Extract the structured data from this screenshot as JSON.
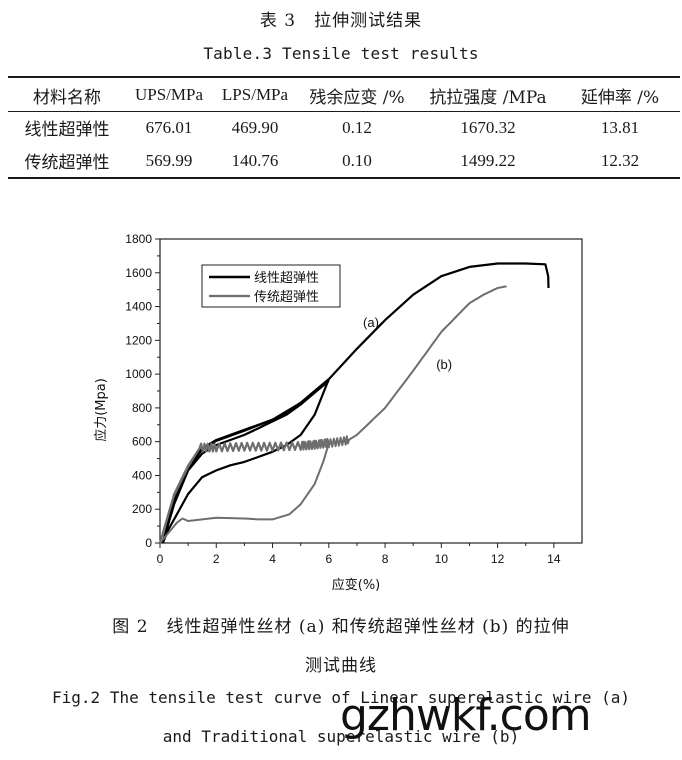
{
  "table": {
    "title_cn": "表 3　拉伸测试结果",
    "title_en": "Table.3  Tensile test results",
    "headers": [
      "材料名称",
      "UPS/MPa",
      "LPS/MPa",
      "残余应变 /%",
      "抗拉强度 /MPa",
      "延伸率 /%"
    ],
    "rows": [
      [
        "线性超弹性",
        "676.01",
        "469.90",
        "0.12",
        "1670.32",
        "13.81"
      ],
      [
        "传统超弹性",
        "569.99",
        "140.76",
        "0.10",
        "1499.22",
        "12.32"
      ]
    ]
  },
  "figure": {
    "caption_cn_line1": "图 2　线性超弹性丝材 (a) 和传统超弹性丝材 (b) 的拉伸",
    "caption_cn_line2": "测试曲线",
    "caption_en_line1": "Fig.2  The tensile test curve of Linear superelastic wire (a)",
    "caption_en_line2": "and Traditional superelastic wire (b)"
  },
  "watermark": "gzhwkf.com",
  "chart_data": {
    "type": "line",
    "title": "",
    "xlabel": "应变(%)",
    "ylabel": "应力(Mpa)",
    "xlim": [
      0,
      15
    ],
    "ylim": [
      0,
      1800
    ],
    "xticks": [
      "0",
      "2",
      "4",
      "6",
      "8",
      "10",
      "12",
      "14"
    ],
    "yticks": [
      "0",
      "200",
      "400",
      "600",
      "800",
      "1000",
      "1200",
      "1400",
      "1600",
      "1800"
    ],
    "grid": false,
    "legend_position": "upper-left",
    "annotations": [
      {
        "text": "(a)",
        "x": 7.5,
        "y": 1280
      },
      {
        "text": "(b)",
        "x": 10.1,
        "y": 1030
      }
    ],
    "colors": {
      "linear": "#000000",
      "traditional": "#6e6e6e"
    },
    "series": [
      {
        "name": "线性超弹性",
        "label": "(a)",
        "color": "#000000",
        "segments": [
          {
            "part": "load-unload cycle 1 (loading)",
            "x": [
              0.1,
              0.5,
              1.0,
              1.5,
              2.0,
              2.5,
              3.0,
              3.5,
              4.0,
              4.5,
              5.0,
              5.5,
              6.0
            ],
            "y": [
              0,
              250,
              450,
              560,
              610,
              640,
              670,
              700,
              730,
              770,
              830,
              900,
              970
            ]
          },
          {
            "part": "load-unload cycle 1 (unloading)",
            "x": [
              6.0,
              5.5,
              5.0,
              4.5,
              4.0,
              3.5,
              3.0,
              2.5,
              2.0,
              1.5,
              1.0,
              0.6,
              0.3,
              0.1
            ],
            "y": [
              970,
              760,
              640,
              580,
              540,
              510,
              480,
              460,
              430,
              390,
              290,
              170,
              80,
              0
            ]
          },
          {
            "part": "load-unload cycle 2 (loading)",
            "x": [
              0.1,
              0.5,
              1.0,
              1.5,
              2.0,
              2.5,
              3.0,
              3.5,
              4.0,
              4.5,
              5.0,
              5.5,
              6.0
            ],
            "y": [
              0,
              230,
              430,
              530,
              580,
              610,
              640,
              680,
              720,
              760,
              820,
              890,
              960
            ]
          },
          {
            "part": "final tensile to failure",
            "x": [
              0.1,
              0.5,
              1.0,
              1.5,
              2.0,
              3.0,
              4.0,
              5.0,
              6.0,
              7.0,
              8.0,
              9.0,
              10.0,
              11.0,
              12.0,
              13.0,
              13.7,
              13.8,
              13.81
            ],
            "y": [
              0,
              240,
              440,
              555,
              605,
              665,
              730,
              830,
              970,
              1150,
              1320,
              1470,
              1580,
              1635,
              1655,
              1655,
              1650,
              1580,
              1510
            ]
          }
        ]
      },
      {
        "name": "传统超弹性",
        "label": "(b)",
        "color": "#6e6e6e",
        "segments": [
          {
            "part": "load-unload cycle (loading, serrated plateau)",
            "x": [
              0.0,
              0.5,
              1.0,
              1.4,
              2.0,
              3.0,
              4.0,
              5.0,
              5.5,
              6.0
            ],
            "y": [
              0,
              280,
              450,
              560,
              560,
              565,
              565,
              570,
              575,
              590
            ]
          },
          {
            "part": "load-unload cycle (unloading)",
            "x": [
              6.0,
              5.8,
              5.5,
              5.0,
              4.6,
              4.0,
              3.5,
              3.0,
              2.0,
              1.0,
              0.8,
              0.6,
              0.3,
              0.0
            ],
            "y": [
              590,
              480,
              350,
              230,
              170,
              140,
              140,
              145,
              150,
              130,
              145,
              120,
              60,
              0
            ]
          },
          {
            "part": "final tensile to failure",
            "x": [
              0.0,
              0.5,
              1.0,
              1.4,
              2.0,
              3.0,
              4.0,
              5.0,
              6.0,
              6.6,
              7.0,
              8.0,
              9.0,
              10.0,
              11.0,
              11.5,
              12.0,
              12.32
            ],
            "y": [
              0,
              290,
              460,
              560,
              560,
              565,
              565,
              570,
              585,
              600,
              640,
              800,
              1020,
              1250,
              1420,
              1470,
              1510,
              1520
            ]
          }
        ]
      }
    ]
  }
}
